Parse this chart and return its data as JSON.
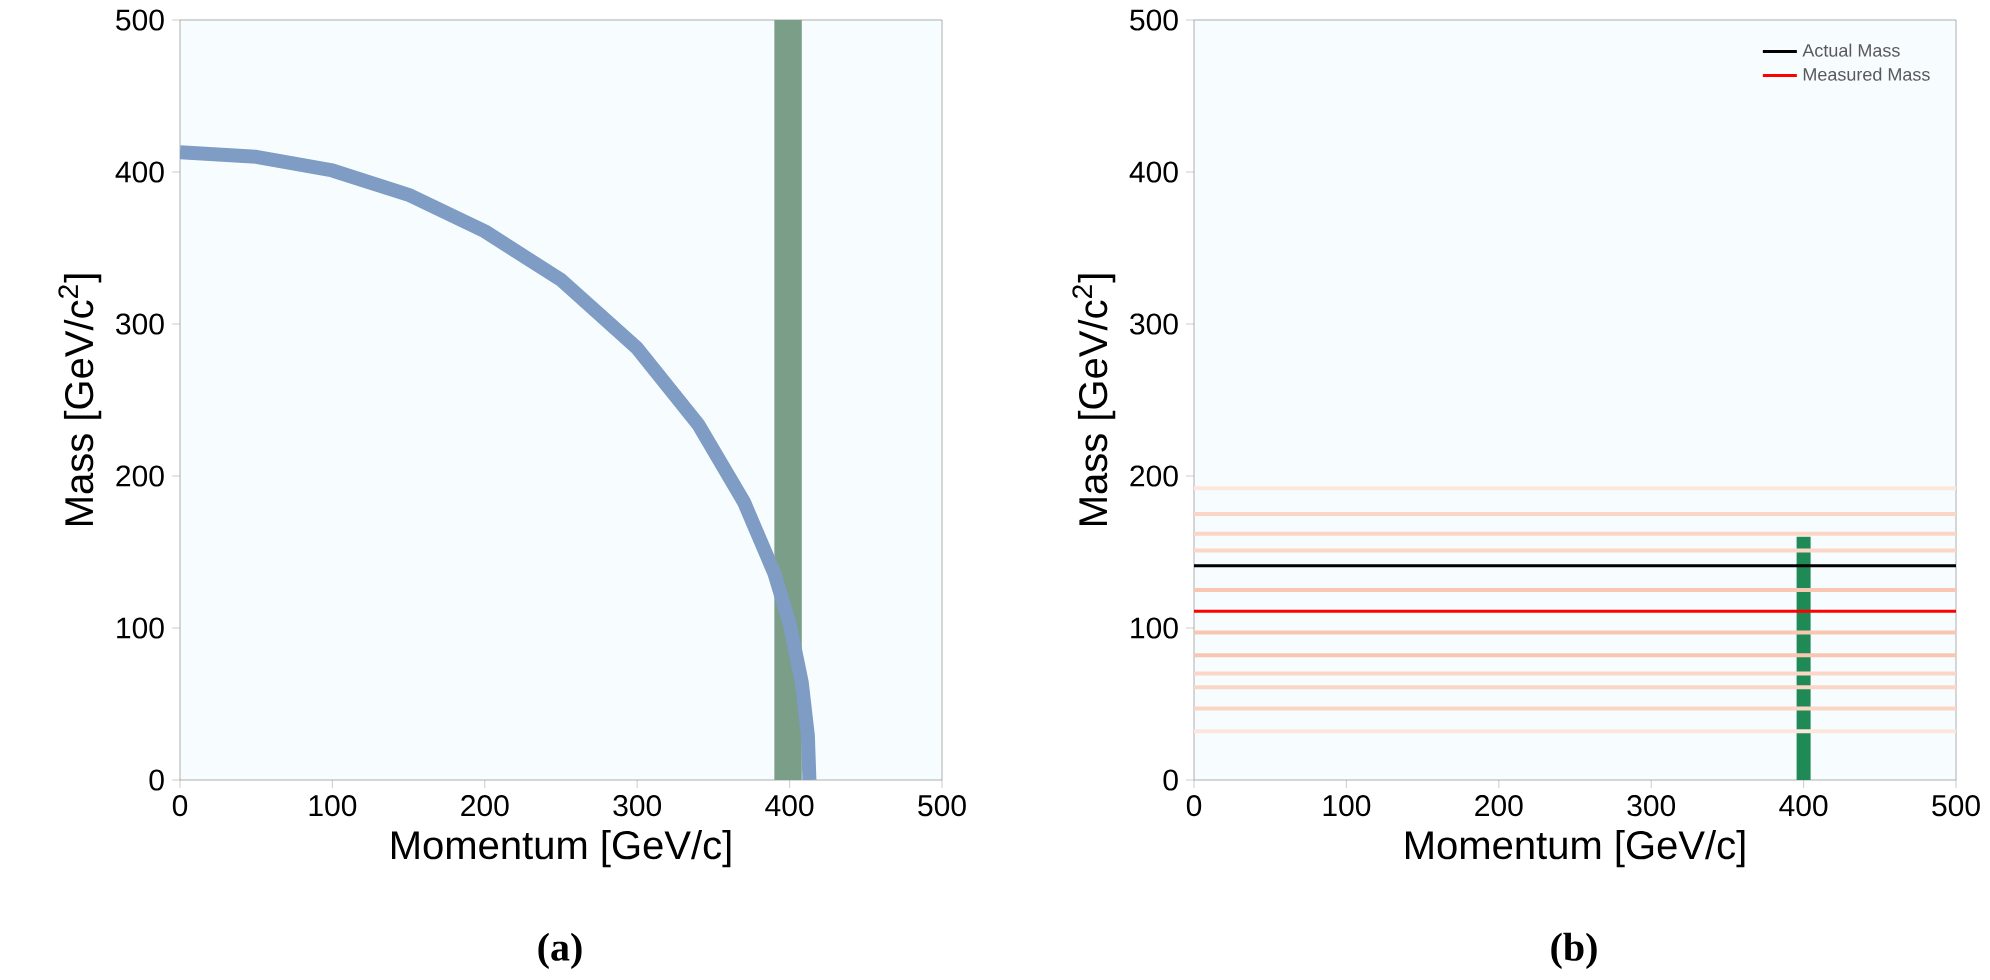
{
  "chart_data": [
    {
      "type": "line",
      "xlabel": "Momentum [GeV/c]",
      "ylabel": "Mass [GeV/c$^{2}$]",
      "xlim": [
        0,
        500
      ],
      "ylim": [
        0,
        500
      ],
      "xticks": [
        0,
        100,
        200,
        300,
        400,
        500
      ],
      "yticks": [
        0,
        100,
        200,
        300,
        400,
        500
      ],
      "series": [
        {
          "color": "#7f9cc4",
          "x": [
            0,
            50,
            100,
            150,
            200,
            250,
            300,
            340,
            370,
            390,
            400,
            408,
            412,
            413
          ],
          "values": [
            413,
            410,
            401,
            385,
            361,
            329,
            284,
            234,
            183,
            136,
            103,
            64,
            29,
            0
          ]
        }
      ],
      "bands": [
        {
          "axis": "x",
          "from": 390,
          "to": 408,
          "color": "#7a9e88"
        }
      ],
      "annotations": [
        "(a)"
      ]
    },
    {
      "type": "line",
      "xlabel": "Momentum [GeV/c]",
      "ylabel": "Mass [GeV/c$^{2}$]",
      "xlim": [
        0,
        500
      ],
      "ylim": [
        0,
        500
      ],
      "xticks": [
        0,
        100,
        200,
        300,
        400,
        500
      ],
      "yticks": [
        0,
        100,
        200,
        300,
        400,
        500
      ],
      "legend": "top right",
      "series": [
        {
          "color": "#1f8a55",
          "x": [
            400,
            400
          ],
          "values": [
            0,
            160
          ]
        }
      ],
      "ref_lines": [
        {
          "axis": "y",
          "value": 192,
          "color": "#fde6dc"
        },
        {
          "axis": "y",
          "value": 175,
          "color": "#fbd5c5"
        },
        {
          "axis": "y",
          "value": 162,
          "color": "#fbd5c5"
        },
        {
          "axis": "y",
          "value": 151,
          "color": "#fbd5c5"
        },
        {
          "axis": "y",
          "value": 125,
          "color": "#f9c6b1"
        },
        {
          "axis": "y",
          "value": 97,
          "color": "#f9c6b1"
        },
        {
          "axis": "y",
          "value": 82,
          "color": "#f9c6b1"
        },
        {
          "axis": "y",
          "value": 70,
          "color": "#fbd5c5"
        },
        {
          "axis": "y",
          "value": 61,
          "color": "#fbd5c5"
        },
        {
          "axis": "y",
          "value": 47,
          "color": "#fbd5c5"
        },
        {
          "axis": "y",
          "value": 32,
          "color": "#fde6dc"
        },
        {
          "axis": "y",
          "value": 141,
          "color": "#000000",
          "label": "Actual Mass"
        },
        {
          "axis": "y",
          "value": 111,
          "color": "#ff0000",
          "label": "Measured Mass"
        }
      ],
      "annotations": [
        "(b)"
      ]
    }
  ]
}
